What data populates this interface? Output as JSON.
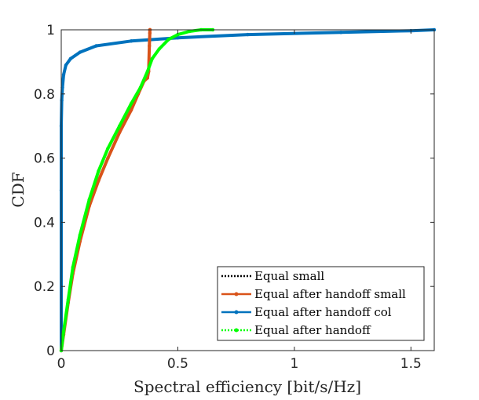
{
  "chart_data": {
    "type": "line",
    "title": "",
    "xlabel": "Spectral efficiency [bit/s/Hz]",
    "ylabel": "CDF",
    "xlim": [
      0,
      1.6
    ],
    "ylim": [
      0,
      1
    ],
    "xticks": [
      0,
      0.5,
      1,
      1.5
    ],
    "xtick_labels": [
      "0",
      "0.5",
      "1",
      "1.5"
    ],
    "yticks": [
      0,
      0.2,
      0.4,
      0.6,
      0.8,
      1
    ],
    "ytick_labels": [
      "0",
      "0.2",
      "0.4",
      "0.6",
      "0.8",
      "1"
    ],
    "grid": false,
    "legend_position": "bottom-right",
    "series": [
      {
        "name": "Equal small",
        "color": "#000000",
        "style": "dotted",
        "marker": "none",
        "x": [],
        "y": []
      },
      {
        "name": "Equal after handoff small",
        "color": "#D95319",
        "style": "solid",
        "marker": "dot",
        "x": [
          0,
          0.01,
          0.03,
          0.05,
          0.08,
          0.12,
          0.16,
          0.2,
          0.25,
          0.3,
          0.33,
          0.355,
          0.37,
          0.375,
          0.378,
          0.38,
          0.38,
          0.381
        ],
        "y": [
          0,
          0.05,
          0.15,
          0.24,
          0.34,
          0.45,
          0.53,
          0.6,
          0.68,
          0.75,
          0.8,
          0.84,
          0.85,
          0.87,
          0.95,
          0.99,
          1.0,
          1.0
        ]
      },
      {
        "name": "Equal after handoff col",
        "color": "#0072BD",
        "style": "solid",
        "marker": "dot",
        "x": [
          0,
          0.0,
          0.0,
          0.002,
          0.005,
          0.01,
          0.02,
          0.04,
          0.08,
          0.15,
          0.3,
          0.5,
          0.8,
          1.2,
          1.5,
          1.6
        ],
        "y": [
          0,
          0.5,
          0.7,
          0.78,
          0.82,
          0.86,
          0.89,
          0.91,
          0.93,
          0.95,
          0.965,
          0.975,
          0.985,
          0.992,
          0.997,
          1.0
        ]
      },
      {
        "name": "Equal after handoff",
        "color": "#00FF00",
        "style": "dotted",
        "marker": "dot",
        "x": [
          0,
          0.01,
          0.03,
          0.05,
          0.08,
          0.12,
          0.16,
          0.2,
          0.25,
          0.3,
          0.34,
          0.37,
          0.39,
          0.42,
          0.46,
          0.5,
          0.55,
          0.6,
          0.65
        ],
        "y": [
          0,
          0.06,
          0.16,
          0.26,
          0.36,
          0.47,
          0.56,
          0.63,
          0.7,
          0.77,
          0.82,
          0.87,
          0.91,
          0.94,
          0.97,
          0.985,
          0.995,
          1.0,
          1.0
        ]
      }
    ]
  }
}
